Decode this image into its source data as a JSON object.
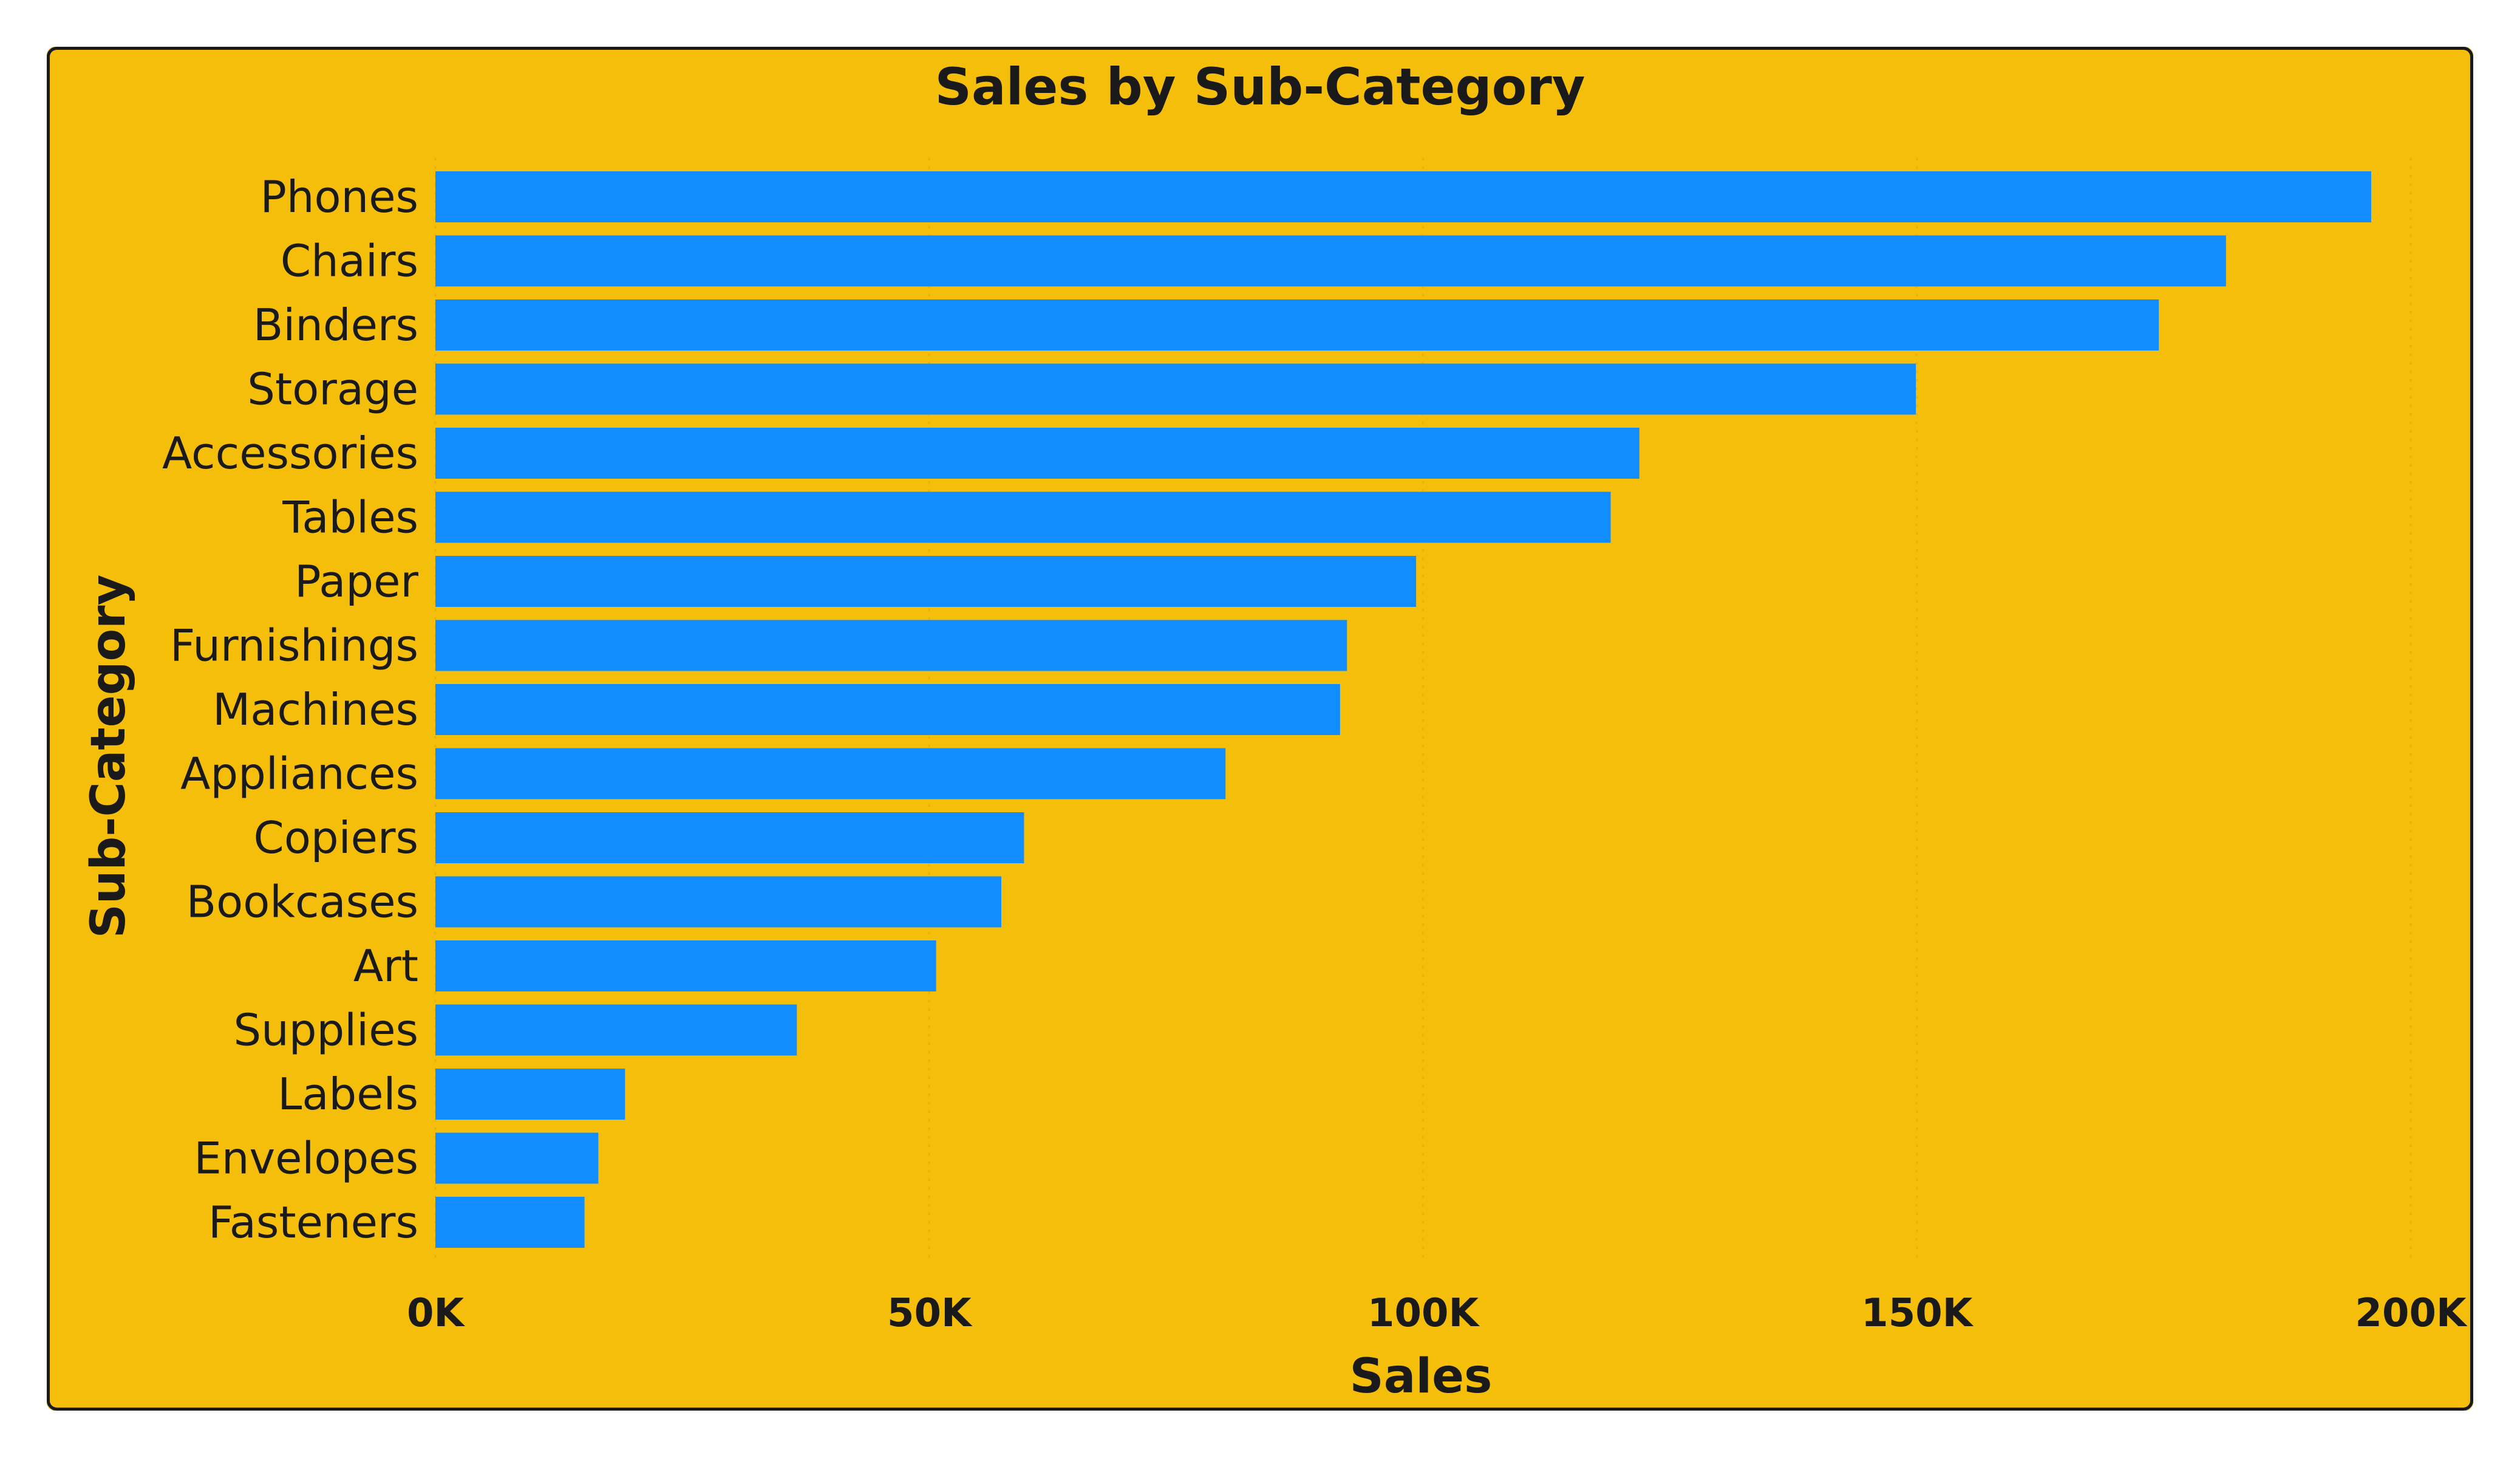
{
  "chart_data": {
    "type": "bar",
    "orientation": "horizontal",
    "title": "Sales by Sub-Category",
    "xlabel": "Sales",
    "ylabel": "Sub-Category",
    "categories": [
      "Phones",
      "Chairs",
      "Binders",
      "Storage",
      "Accessories",
      "Tables",
      "Paper",
      "Furnishings",
      "Machines",
      "Appliances",
      "Copiers",
      "Bookcases",
      "Art",
      "Supplies",
      "Labels",
      "Envelopes",
      "Fasteners"
    ],
    "values": [
      196000,
      181300,
      174500,
      149900,
      121900,
      119000,
      99300,
      92300,
      91600,
      80000,
      59600,
      57300,
      50700,
      36600,
      19200,
      16500,
      15100
    ],
    "xlim": [
      0,
      200000
    ],
    "xticks": [
      0,
      50000,
      100000,
      150000,
      200000
    ],
    "xtick_labels": [
      "0K",
      "50K",
      "100K",
      "150K",
      "200K"
    ],
    "grid": true,
    "legend": "none",
    "colors": {
      "background": "#F5BE0A",
      "bar": "#118DFF",
      "text": "#1a1a1a",
      "gridline": "#e8b209",
      "border": "#1a1a1a"
    }
  }
}
